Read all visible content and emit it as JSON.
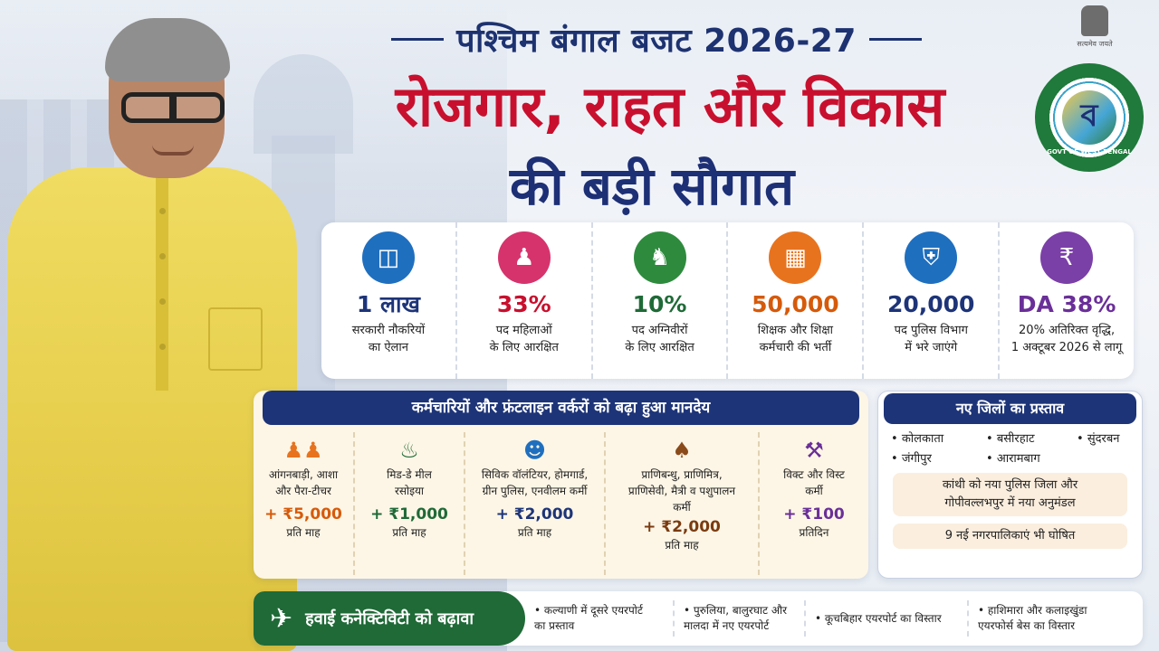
{
  "header": {
    "top_title": "पश्चिम बंगाल बजट 2026-27",
    "main_title": "रोजगार, राहत और विकास",
    "sub_title": "की बड़ी सौगात"
  },
  "emblems": {
    "national_caption": "सत्यमेव जयते",
    "state_logo_letter": "ব",
    "state_logo_text": "GOVT OF WEST BENGAL"
  },
  "stats": [
    {
      "icon": "briefcase-icon",
      "color": "#1f6fbf",
      "value": "1 लाख",
      "line1": "सरकारी नौकरियों",
      "line2": "का ऐलान",
      "value_color": "#1d3478"
    },
    {
      "icon": "woman-icon",
      "color": "#d6336c",
      "value": "33%",
      "line1": "पद महिलाओं",
      "line2": "के लिए आरक्षित",
      "value_color": "#c8102e"
    },
    {
      "icon": "soldier-icon",
      "color": "#2e8b3e",
      "value": "10%",
      "line1": "पद अग्निवीरों",
      "line2": "के लिए आरक्षित",
      "value_color": "#1f6a37"
    },
    {
      "icon": "teacher-icon",
      "color": "#e8731e",
      "value": "50,000",
      "line1": "शिक्षक और शिक्षा",
      "line2": "कर्मचारी की भर्ती",
      "value_color": "#d65a0a"
    },
    {
      "icon": "police-shield-icon",
      "color": "#1f6fbf",
      "value": "20,000",
      "line1": "पद पुलिस विभाग",
      "line2": "में भरे जाएंगे",
      "value_color": "#1d3478"
    },
    {
      "icon": "rupee-hands-icon",
      "color": "#7b3fa8",
      "value": "DA 38%",
      "line1": "20% अतिरिक्त वृद्धि,",
      "line2": "1 अक्टूबर 2026 से लागू",
      "value_color": "#6a2f98"
    }
  ],
  "honorarium": {
    "title": "कर्मचारियों और फ्रंटलाइन वर्करों को बढ़ा हुआ मानदेय",
    "items": [
      {
        "icon": "people-icon",
        "label1": "आंगनबाड़ी, आशा",
        "label2": "और पैरा-टीचर",
        "label3": "",
        "amount": "+ ₹5,000",
        "per": "प्रति माह",
        "amount_color": "#d65a0a"
      },
      {
        "icon": "cooking-pot-icon",
        "label1": "मिड-डे मील",
        "label2": "रसोइया",
        "label3": "",
        "amount": "+ ₹1,000",
        "per": "प्रति माह",
        "amount_color": "#1f6a37"
      },
      {
        "icon": "volunteer-icon",
        "label1": "सिविक वॉलंटियर, होमगार्ड,",
        "label2": "ग्रीन पुलिस, एनवीलम कर्मी",
        "label3": "",
        "amount": "+ ₹2,000",
        "per": "प्रति माह",
        "amount_color": "#1d3478"
      },
      {
        "icon": "cow-icon",
        "label1": "प्राणिबन्धु, प्राणिमित्र,",
        "label2": "प्राणिसेवी, मैत्री व पशुपालन",
        "label3": "कर्मी",
        "amount": "+ ₹2,000",
        "per": "प्रति माह",
        "amount_color": "#7a3b10"
      },
      {
        "icon": "worker-icon",
        "label1": "विक्ट और विस्ट",
        "label2": "कर्मी",
        "label3": "",
        "amount": "+ ₹100",
        "per": "प्रतिदिन",
        "amount_color": "#6a2f98"
      }
    ]
  },
  "districts": {
    "title": "नए जिलों का प्रस्ताव",
    "names": [
      "कोलकाता",
      "बसीरहाट",
      "सुंदरबन",
      "जंगीपुर",
      "आरामबाग"
    ],
    "note1_line1": "कांथी को नया पुलिस जिला और",
    "note1_line2": "गोपीवल्लभपुर में नया अनुमंडल",
    "note2": "9 नई नगरपालिकाएं भी घोषित"
  },
  "air": {
    "title": "हवाई कनेक्टिविटी को बढ़ावा",
    "items": [
      {
        "line1": "• कल्याणी में दूसरे एयरपोर्ट",
        "line2": "का प्रस्ताव"
      },
      {
        "line1": "• पुरुलिया, बालुरघाट और",
        "line2": "मालदा में नए एयरपोर्ट"
      },
      {
        "line1": "• कूचबिहार एयरपोर्ट का विस्तार",
        "line2": ""
      },
      {
        "line1": "• हाशिमारा और कलाइखुंडा",
        "line2": "एयरफोर्स बेस का विस्तार"
      }
    ]
  }
}
